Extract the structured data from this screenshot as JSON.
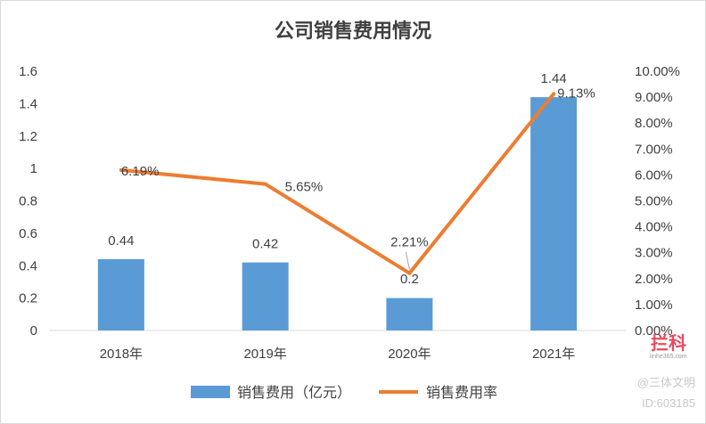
{
  "chart_data": {
    "type": "bar",
    "title": "公司销售费用情况",
    "categories": [
      "2018年",
      "2019年",
      "2020年",
      "2021年"
    ],
    "series": [
      {
        "name": "销售费用（亿元）",
        "kind": "bar",
        "axis": "left",
        "color": "#5b9bd5",
        "values": [
          0.44,
          0.42,
          0.2,
          1.44
        ],
        "labels": [
          "0.44",
          "0.42",
          "0.2",
          "1.44"
        ]
      },
      {
        "name": "销售费用率",
        "kind": "line",
        "axis": "right",
        "color": "#ed7d31",
        "values": [
          6.19,
          5.65,
          2.21,
          9.13
        ],
        "labels": [
          "6.19%",
          "5.65%",
          "2.21%",
          "9.13%"
        ]
      }
    ],
    "y_left": {
      "range": [
        0,
        1.6
      ],
      "ticks": [
        "0",
        "0.2",
        "0.4",
        "0.6",
        "0.8",
        "1",
        "1.2",
        "1.4",
        "1.6"
      ]
    },
    "y_right": {
      "range": [
        0,
        10
      ],
      "unit": "%",
      "ticks": [
        "0.00%",
        "1.00%",
        "2.00%",
        "3.00%",
        "4.00%",
        "5.00%",
        "6.00%",
        "7.00%",
        "8.00%",
        "9.00%",
        "10.00%"
      ]
    },
    "grid": false,
    "legend": "bottom"
  },
  "watermark": {
    "brand": "拦科",
    "site": "linhe365.com",
    "line1": "@三体文明",
    "line2": "ID:603185"
  }
}
